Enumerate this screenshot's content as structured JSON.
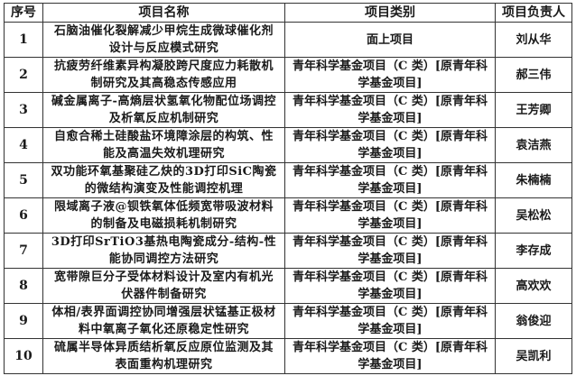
{
  "headers": [
    "序号",
    "项目名称",
    "项目类别",
    "项目负责人"
  ],
  "rows": [
    {
      "no": "1",
      "name": "石脑油催化裂解减少甲烷生成微球催化剂设计与反应模式研究",
      "category": "面上项目",
      "leader": "刘从华"
    },
    {
      "no": "2",
      "name": "抗疲劳纤维素异构凝胶跨尺度应力耗散机制研究及其高稳态传感应用",
      "category": "青年科学基金项目（C 类）[原青年科学基金项目]",
      "leader": "郝三伟"
    },
    {
      "no": "3",
      "name": "碱金属离子-高熵层状氢氧化物配位场调控及析氧反应机制研究",
      "category": "青年科学基金项目（C 类）[原青年科学基金项目]",
      "leader": "王芳卿"
    },
    {
      "no": "4",
      "name": "自愈合稀土硅酸盐环境障涂层的构筑、性能及高温失效机理研究",
      "category": "青年科学基金项目（C 类）[原青年科学基金项目]",
      "leader": "袁洁燕"
    },
    {
      "no": "5",
      "name": "双功能环氧基聚硅乙炔的3D打印SiC陶瓷的微结构演变及性能调控机理",
      "category": "青年科学基金项目（C 类）[原青年科学基金项目]",
      "leader": "朱楠楠"
    },
    {
      "no": "6",
      "name": "限域离子液@钡铁氧体低频宽带吸波材料的制备及电磁损耗机制研究",
      "category": "青年科学基金项目（C 类）[原青年科学基金项目]",
      "leader": "吴松松"
    },
    {
      "no": "7",
      "name": "3D打印SrTiO3基热电陶瓷成分-结构-性能协同调控方法研究",
      "category": "青年科学基金项目（C 类）[原青年科学基金项目]",
      "leader": "李存成"
    },
    {
      "no": "8",
      "name": "宽带隙巨分子受体材料设计及室内有机光伏器件制备研究",
      "category": "青年科学基金项目（C 类）[原青年科学基金项目]",
      "leader": "高欢欢"
    },
    {
      "no": "9",
      "name": "体相/表界面调控协同增强层状锰基正极材料中氧离子氧化还原稳定性研究",
      "category": "青年科学基金项目（C 类）[原青年科学基金项目]",
      "leader": "翁俊迎"
    },
    {
      "no": "10",
      "name": "硫属半导体异质结析氧反应原位监测及其表面重构机理研究",
      "category": "青年科学基金项目（C 类）[原青年科学基金项目]",
      "leader": "吴凯利"
    }
  ]
}
